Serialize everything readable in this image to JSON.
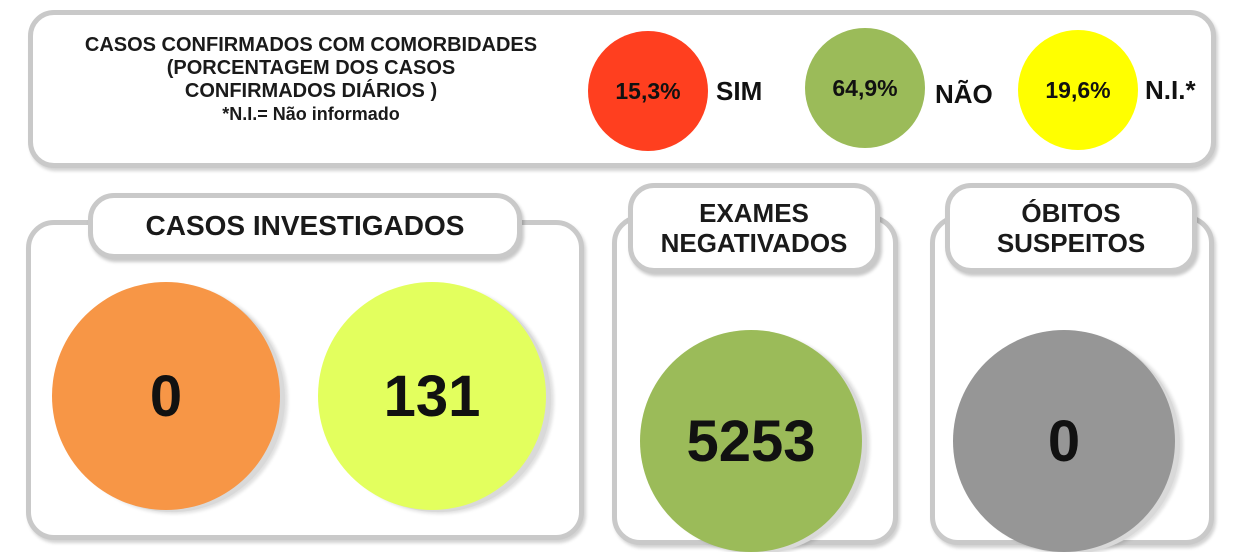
{
  "comorbidities": {
    "title_line1": "CASOS CONFIRMADOS COM COMORBIDADES",
    "title_line2": "(PORCENTAGEM DOS CASOS",
    "title_line3": "CONFIRMADOS DIÁRIOS )",
    "note": "*N.I.= Não informado",
    "items": [
      {
        "value": "15,3%",
        "label": "SIM",
        "color": "#ff3f1f"
      },
      {
        "value": "64,9%",
        "label": "NÃO",
        "color": "#9bbb59"
      },
      {
        "value": "19,6%",
        "label": "N.I.*",
        "color": "#ffff00"
      }
    ]
  },
  "investigados": {
    "title": "CASOS INVESTIGADOS",
    "values": [
      {
        "value": "0",
        "color": "#f79646"
      },
      {
        "value": "131",
        "color": "#e3ff5e"
      }
    ]
  },
  "exames": {
    "title_line1": "EXAMES",
    "title_line2": "NEGATIVADOS",
    "value": "5253",
    "color": "#9bbb59"
  },
  "obitos": {
    "title_line1": "ÓBITOS",
    "title_line2": "SUSPEITOS",
    "value": "0",
    "color": "#969696"
  }
}
